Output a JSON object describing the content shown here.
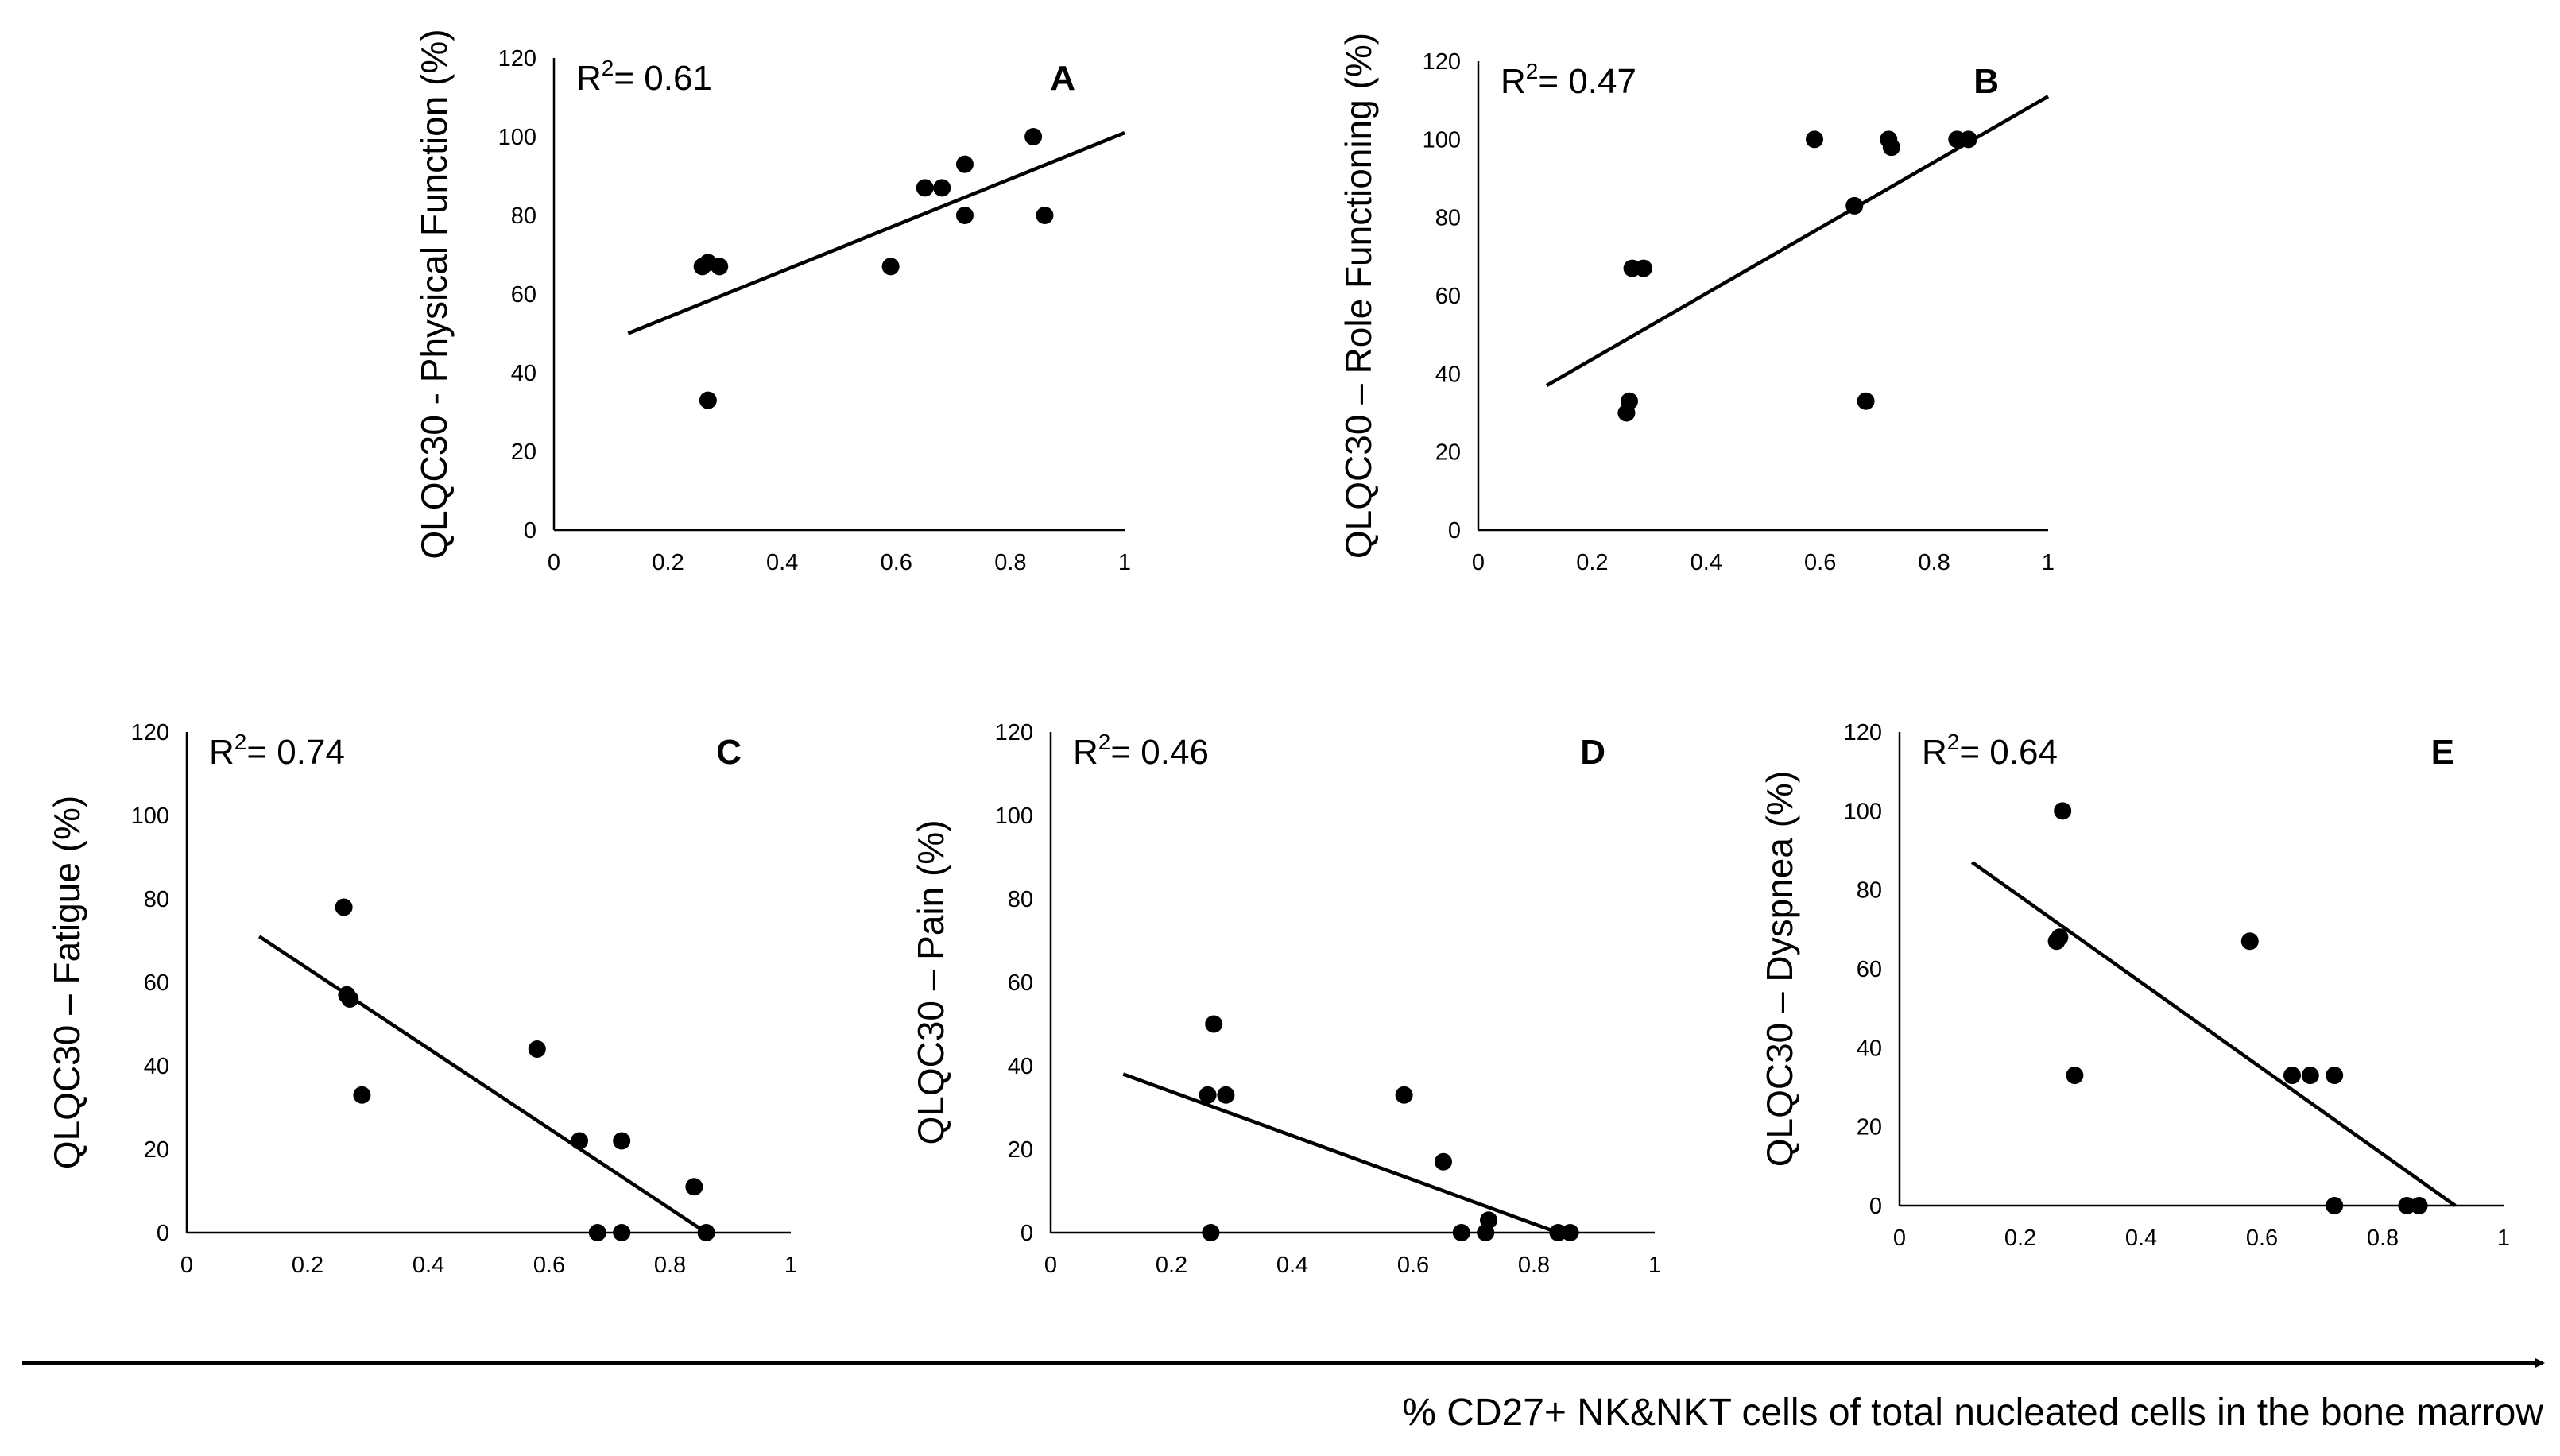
{
  "figure": {
    "x_axis_caption": "% CD27+ NK&NKT cells of total nucleated cells in the bone marrow"
  },
  "colors": {
    "ink": "#000000",
    "background": "#ffffff"
  },
  "chart_data": [
    {
      "type": "scatter",
      "panel_label": "A",
      "ylabel": "QLQC30 - Physical Function (%)",
      "r2_prefix": "R",
      "r2_sup": "2",
      "r2_value": "= 0.61",
      "xlim": [
        0,
        1
      ],
      "ylim": [
        0,
        120
      ],
      "xticks": [
        "0",
        "0.2",
        "0.4",
        "0.6",
        "0.8",
        "1"
      ],
      "yticks": [
        "0",
        "20",
        "40",
        "60",
        "80",
        "100",
        "120"
      ],
      "x": [
        0.26,
        0.27,
        0.29,
        0.27,
        0.59,
        0.65,
        0.68,
        0.72,
        0.72,
        0.84,
        0.86
      ],
      "y": [
        67,
        68,
        67,
        33,
        67,
        87,
        87,
        93,
        80,
        100,
        80
      ],
      "trendline": {
        "x": [
          0.13,
          1.0
        ],
        "y": [
          50,
          101
        ]
      }
    },
    {
      "type": "scatter",
      "panel_label": "B",
      "ylabel": "QLQC30 – Role Functioning (%)",
      "r2_prefix": "R",
      "r2_sup": "2",
      "r2_value": "= 0.47",
      "xlim": [
        0,
        1
      ],
      "ylim": [
        0,
        120
      ],
      "xticks": [
        "0",
        "0.2",
        "0.4",
        "0.6",
        "0.8",
        "1"
      ],
      "yticks": [
        "0",
        "20",
        "40",
        "60",
        "80",
        "100",
        "120"
      ],
      "x": [
        0.27,
        0.29,
        0.265,
        0.26,
        0.59,
        0.66,
        0.68,
        0.72,
        0.725,
        0.84,
        0.86
      ],
      "y": [
        67,
        67,
        33,
        30,
        100,
        83,
        33,
        100,
        98,
        100,
        100
      ],
      "trendline": {
        "x": [
          0.12,
          1.0
        ],
        "y": [
          37,
          111
        ]
      }
    },
    {
      "type": "scatter",
      "panel_label": "C",
      "ylabel": "QLQC30 – Fatigue (%)",
      "r2_prefix": "R",
      "r2_sup": "2",
      "r2_value": "= 0.74",
      "xlim": [
        0,
        1
      ],
      "ylim": [
        0,
        120
      ],
      "xticks": [
        "0",
        "0.2",
        "0.4",
        "0.6",
        "0.8",
        "1"
      ],
      "yticks": [
        "0",
        "20",
        "40",
        "60",
        "80",
        "100",
        "120"
      ],
      "x": [
        0.26,
        0.265,
        0.27,
        0.29,
        0.58,
        0.65,
        0.68,
        0.72,
        0.72,
        0.84,
        0.86
      ],
      "y": [
        78,
        57,
        56,
        33,
        44,
        22,
        0,
        22,
        0,
        11,
        0
      ],
      "trendline": {
        "x": [
          0.12,
          0.86
        ],
        "y": [
          71,
          0
        ]
      }
    },
    {
      "type": "scatter",
      "panel_label": "D",
      "ylabel": "QLQC30 – Pain (%)",
      "r2_prefix": "R",
      "r2_sup": "2",
      "r2_value": "= 0.46",
      "xlim": [
        0,
        1
      ],
      "ylim": [
        0,
        120
      ],
      "xticks": [
        "0",
        "0.2",
        "0.4",
        "0.6",
        "0.8",
        "1"
      ],
      "yticks": [
        "0",
        "20",
        "40",
        "60",
        "80",
        "100",
        "120"
      ],
      "x": [
        0.26,
        0.27,
        0.265,
        0.29,
        0.585,
        0.65,
        0.68,
        0.72,
        0.725,
        0.84,
        0.86
      ],
      "y": [
        33,
        50,
        0,
        33,
        33,
        17,
        0,
        0,
        3,
        0,
        0
      ],
      "trendline": {
        "x": [
          0.12,
          0.84
        ],
        "y": [
          38,
          0
        ]
      }
    },
    {
      "type": "scatter",
      "panel_label": "E",
      "ylabel": "QLQC30 – Dyspnea (%)",
      "r2_prefix": "R",
      "r2_sup": "2",
      "r2_value": "= 0.64",
      "xlim": [
        0,
        1
      ],
      "ylim": [
        0,
        120
      ],
      "xticks": [
        "0",
        "0.2",
        "0.4",
        "0.6",
        "0.8",
        "1"
      ],
      "yticks": [
        "0",
        "20",
        "40",
        "60",
        "80",
        "100",
        "120"
      ],
      "x": [
        0.26,
        0.27,
        0.265,
        0.29,
        0.58,
        0.65,
        0.68,
        0.72,
        0.72,
        0.84,
        0.86
      ],
      "y": [
        67,
        100,
        68,
        33,
        67,
        33,
        33,
        33,
        0,
        0,
        0
      ],
      "trendline": {
        "x": [
          0.12,
          0.92
        ],
        "y": [
          87,
          0
        ]
      }
    }
  ]
}
